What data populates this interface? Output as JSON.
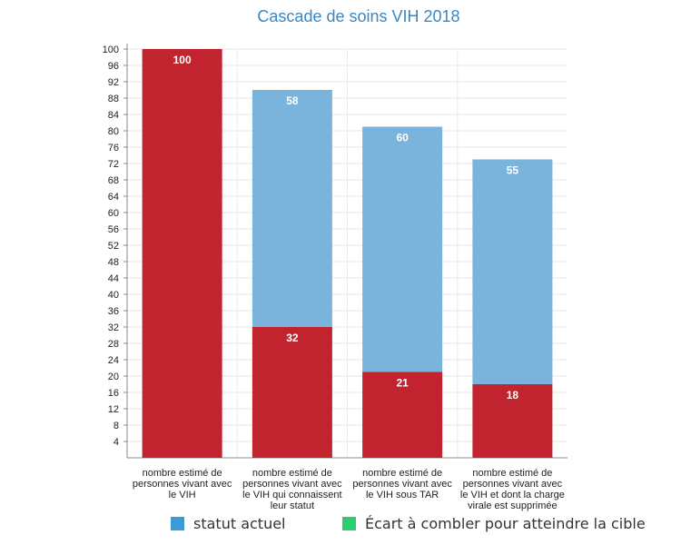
{
  "chart_data": {
    "type": "bar",
    "stacked": true,
    "title": "Cascade de soins VIH 2018",
    "categories": [
      "nombre estimé de personnes vivant avec le VIH",
      "nombre estimé de personnes vivant avec le VIH qui connaissent leur statut",
      "nombre estimé de personnes vivant avec le VIH sous TAR",
      "nombre estimé de personnes vivant avec le VIH et dont la charge virale est supprimée"
    ],
    "series": [
      {
        "values": [
          100,
          32,
          21,
          18
        ],
        "labels": [
          "100",
          "32",
          "21",
          "18"
        ],
        "color": "#c1232f"
      },
      {
        "values": [
          0,
          58,
          60,
          55
        ],
        "labels": [
          "",
          "58",
          "60",
          "55"
        ],
        "color": "#7ab3dc"
      }
    ],
    "ylim": [
      0,
      100
    ],
    "yticks": [
      4,
      8,
      12,
      16,
      20,
      24,
      28,
      32,
      36,
      40,
      44,
      48,
      52,
      56,
      60,
      64,
      68,
      72,
      76,
      80,
      84,
      88,
      92,
      96,
      100
    ],
    "grid": true,
    "legend": {
      "position": "bottom",
      "items": [
        {
          "label": "statut actuel",
          "color": "#3c9ad6"
        },
        {
          "label": "Écart à combler pour atteindre la cible",
          "color": "#2ecc71"
        }
      ]
    }
  }
}
